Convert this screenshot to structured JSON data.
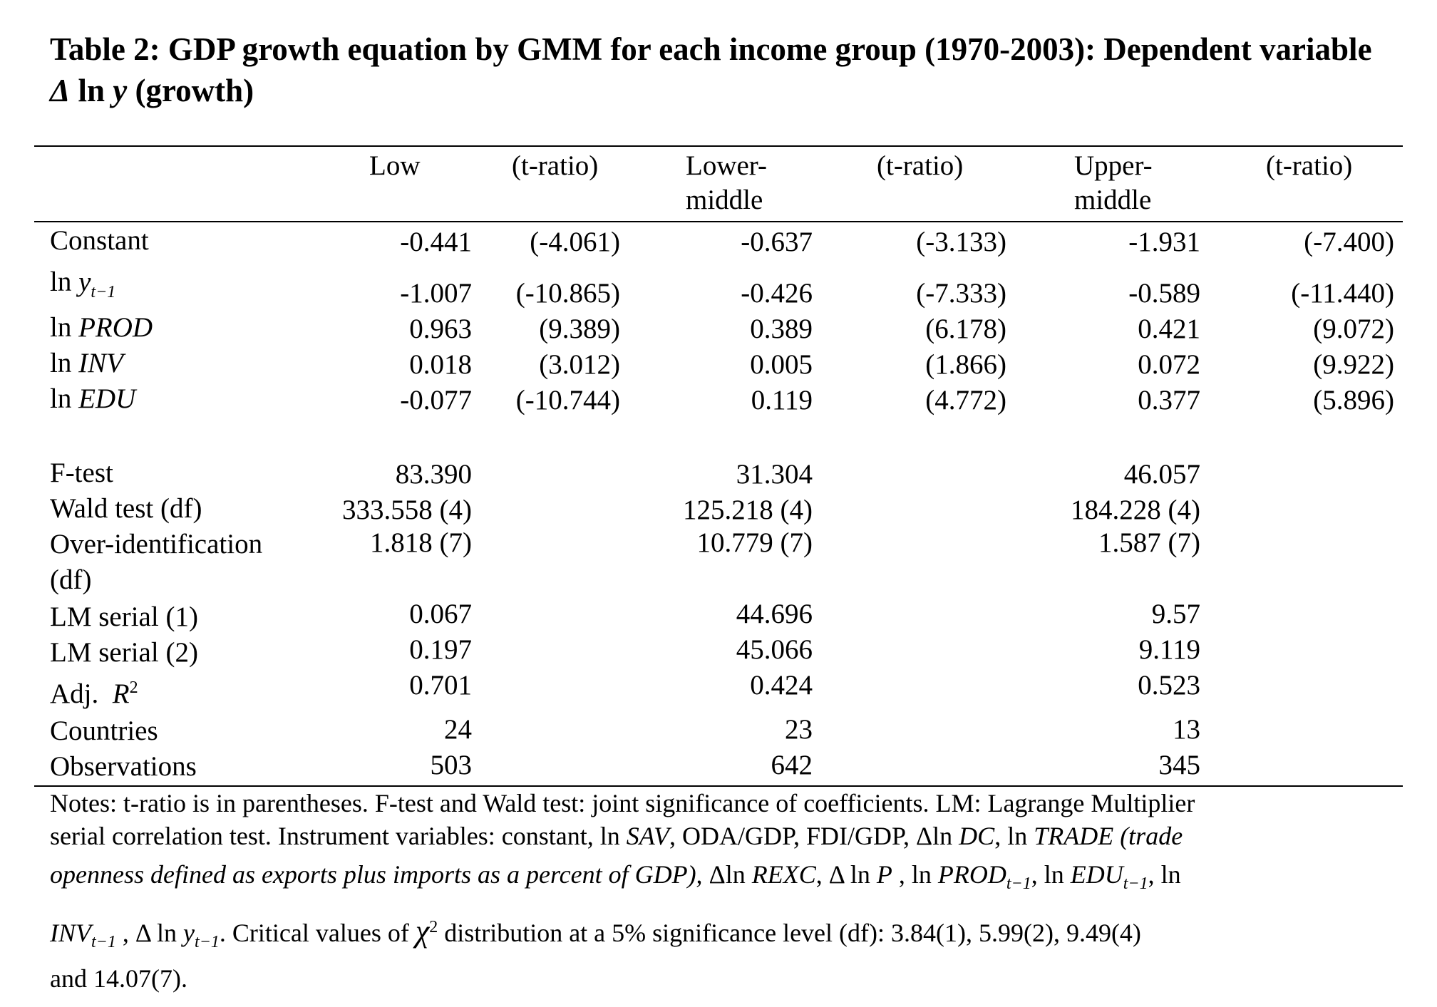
{
  "title": {
    "text": "Table 2: GDP growth equation by GMM for each income group (1970-2003): Dependent variable",
    "var": "Δ ln y",
    "suffix": "(growth)"
  },
  "columns": {
    "low": "Low",
    "t1": "(t-ratio)",
    "lower_middle_1": "Lower-",
    "lower_middle_2": "middle",
    "t2": "(t-ratio)",
    "upper_middle_1": "Upper-",
    "upper_middle_2": "middle",
    "t3": "(t-ratio)"
  },
  "rows": [
    {
      "label": "Constant",
      "low": "-0.441",
      "low_t": "(-4.061)",
      "lm": "-0.637",
      "lm_t": "(-3.133)",
      "um": "-1.931",
      "um_t": "(-7.400)"
    },
    {
      "label_a": "ln",
      "label_b": "y",
      "label_sub": "t−1",
      "low": "-1.007",
      "low_t": "(-10.865)",
      "lm": "-0.426",
      "lm_t": "(-7.333)",
      "um": "-0.589",
      "um_t": "(-11.440)"
    },
    {
      "label_a": "ln",
      "label_b": "PROD",
      "low": "0.963",
      "low_t": "(9.389)",
      "lm": "0.389",
      "lm_t": "(6.178)",
      "um": "0.421",
      "um_t": "(9.072)"
    },
    {
      "label_a": "ln",
      "label_b": "INV",
      "low": "0.018",
      "low_t": "(3.012)",
      "lm": "0.005",
      "lm_t": "(1.866)",
      "um": "0.072",
      "um_t": "(9.922)"
    },
    {
      "label_a": "ln",
      "label_b": "EDU",
      "low": "-0.077",
      "low_t": "(-10.744)",
      "lm": "0.119",
      "lm_t": "(4.772)",
      "um": "0.377",
      "um_t": "(5.896)"
    }
  ],
  "stats": [
    {
      "label": "F-test",
      "low": "83.390",
      "lm": "31.304",
      "um": "46.057"
    },
    {
      "label": "Wald test (df)",
      "low": "333.558 (4)",
      "lm": "125.218 (4)",
      "um": "184.228 (4)"
    },
    {
      "label": "Over-identification",
      "label2": "(df)",
      "low": "1.818 (7)",
      "lm": "10.779 (7)",
      "um": "1.587 (7)"
    },
    {
      "label": "LM serial (1)",
      "low": "0.067",
      "lm": "44.696",
      "um": "9.57"
    },
    {
      "label": "LM serial (2)",
      "low": "0.197",
      "lm": "45.066",
      "um": "9.119"
    },
    {
      "label": "Adj.",
      "label_r": "R",
      "label_sup": "2",
      "low": "0.701",
      "lm": "0.424",
      "um": "0.523"
    },
    {
      "label": "Countries",
      "low": "24",
      "lm": "23",
      "um": "13"
    },
    {
      "label": "Observations",
      "low": "503",
      "lm": "642",
      "um": "345"
    }
  ],
  "notes": {
    "line1": "Notes: t-ratio is in parentheses.  F-test and Wald test: joint significance of coefficients.  LM: Lagrange Multiplier",
    "line2a": "serial correlation test.  Instrument variables: constant, ln ",
    "line2b": "SAV",
    "line2c": ", ODA/GDP, FDI/GDP, Δln ",
    "line2d": "DC",
    "line2e": ", ln ",
    "line2f": "TRADE (trade",
    "line3a": "openness defined as exports plus imports as a percent of GDP),",
    "line3b": " Δln ",
    "line3c": "REXC",
    "line3d": ",  Δ ln ",
    "line3e": "P",
    "line3f": " , ln ",
    "line3g": "PROD",
    "line3h": "t−1",
    "line3i": ", ln ",
    "line3j": "EDU",
    "line3k": "t−1",
    "line3l": ", ln",
    "line4a": "INV",
    "line4b": "t−1",
    "line4c": " ,  Δ ln ",
    "line4d": "y",
    "line4e": "t−1",
    "line4f": ".   Critical values of ",
    "line4g": "χ",
    "line4h": "2",
    "line4i": " distribution at a 5% significance level (df): 3.84(1),  5.99(2),  9.49(4)",
    "line5": "and 14.07(7)."
  }
}
